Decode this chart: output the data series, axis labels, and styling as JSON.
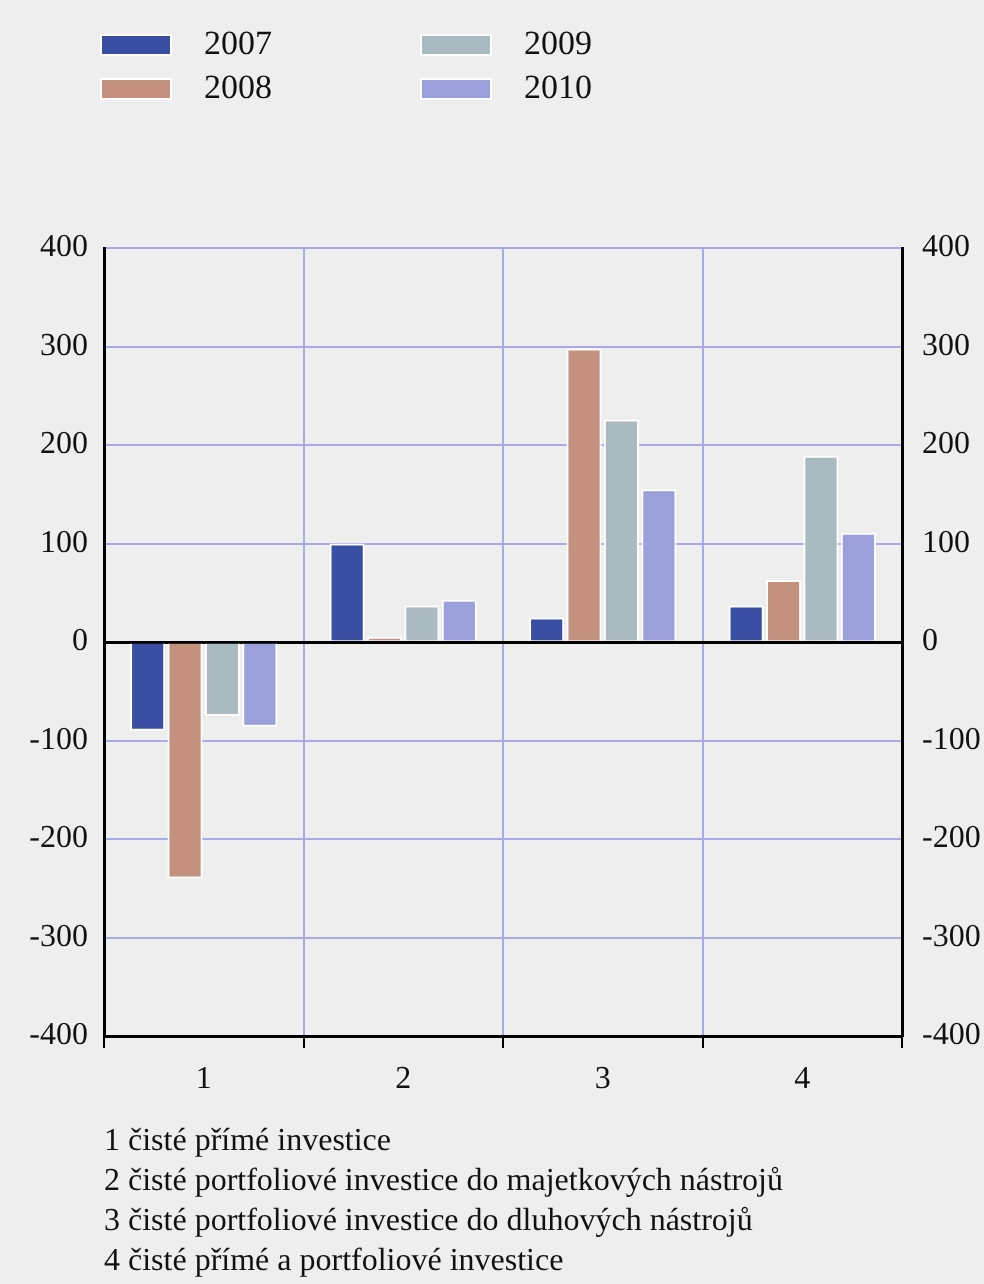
{
  "chart_data": {
    "type": "bar",
    "categories": [
      "1",
      "2",
      "3",
      "4"
    ],
    "series": [
      {
        "name": "2007",
        "color": "#3a4fa3",
        "values": [
          -90,
          100,
          25,
          37
        ]
      },
      {
        "name": "2008",
        "color": "#c4917f",
        "values": [
          -240,
          5,
          298,
          63
        ]
      },
      {
        "name": "2009",
        "color": "#a9bac1",
        "values": [
          -75,
          37,
          226,
          189
        ]
      },
      {
        "name": "2010",
        "color": "#9ba0db",
        "values": [
          -86,
          43,
          155,
          111
        ]
      }
    ],
    "ylim": [
      -400,
      400
    ],
    "yticks": [
      -400,
      -300,
      -200,
      -100,
      0,
      100,
      200,
      300,
      400
    ],
    "y2lim": [
      -400,
      400
    ],
    "y2ticks": [
      -400,
      -300,
      -200,
      -100,
      0,
      100,
      200,
      300,
      400
    ],
    "grid": true,
    "legend": "top left",
    "annotations": [
      "1 čisté přímé investice",
      "2 čisté portfoliové investice do majetkových nástrojů",
      "3 čisté portfoliové investice do dluhových nástrojů",
      "4 čisté přímé a portfoliové investice"
    ]
  }
}
